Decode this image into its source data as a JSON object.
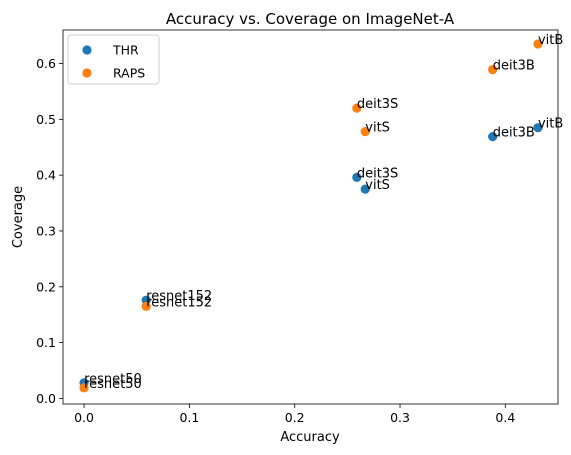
{
  "chart_data": {
    "type": "scatter",
    "title": "Accuracy vs. Coverage on ImageNet-A",
    "xlabel": "Accuracy",
    "ylabel": "Coverage",
    "xlim": [
      -0.02,
      0.45
    ],
    "ylim": [
      -0.01,
      0.66
    ],
    "xticks": [
      "0.0",
      "0.1",
      "0.2",
      "0.3",
      "0.4"
    ],
    "xtick_values": [
      0.0,
      0.1,
      0.2,
      0.3,
      0.4
    ],
    "yticks": [
      "0.0",
      "0.1",
      "0.2",
      "0.3",
      "0.4",
      "0.5",
      "0.6"
    ],
    "ytick_values": [
      0.0,
      0.1,
      0.2,
      0.3,
      0.4,
      0.5,
      0.6
    ],
    "grid": false,
    "legend": "top-left",
    "series": [
      {
        "name": "THR",
        "color": "#1f77b4",
        "points": [
          {
            "label": "resnet50",
            "x": 0.0,
            "y": 0.028
          },
          {
            "label": "resnet152",
            "x": 0.059,
            "y": 0.176
          },
          {
            "label": "deit3S",
            "x": 0.259,
            "y": 0.396
          },
          {
            "label": "vitS",
            "x": 0.267,
            "y": 0.375
          },
          {
            "label": "deit3B",
            "x": 0.388,
            "y": 0.469
          },
          {
            "label": "vitB",
            "x": 0.431,
            "y": 0.485
          }
        ]
      },
      {
        "name": "RAPS",
        "color": "#ff7f0e",
        "points": [
          {
            "label": "resnet50",
            "x": 0.0,
            "y": 0.019
          },
          {
            "label": "resnet152",
            "x": 0.059,
            "y": 0.165
          },
          {
            "label": "deit3S",
            "x": 0.259,
            "y": 0.52
          },
          {
            "label": "vitS",
            "x": 0.267,
            "y": 0.478
          },
          {
            "label": "deit3B",
            "x": 0.388,
            "y": 0.589
          },
          {
            "label": "vitB",
            "x": 0.431,
            "y": 0.635
          }
        ]
      }
    ]
  }
}
